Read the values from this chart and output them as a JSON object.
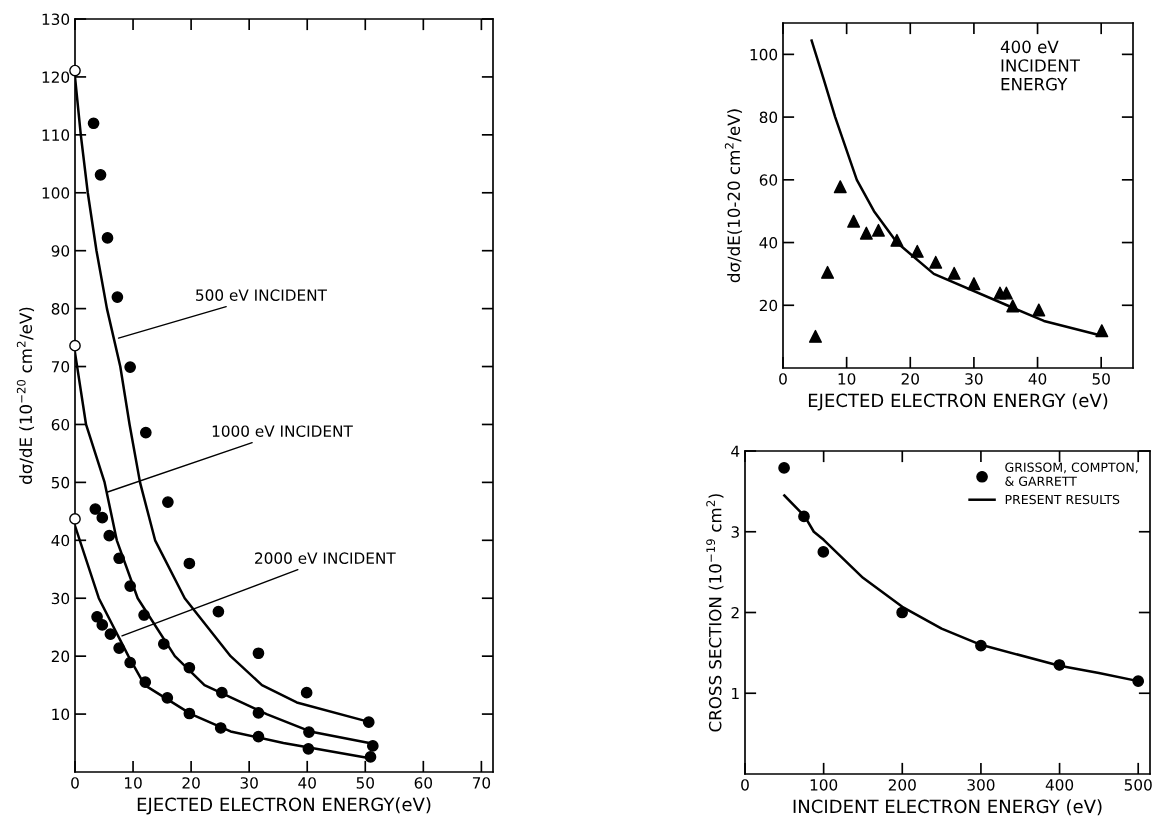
{
  "chart_data": [
    {
      "type": "scatter",
      "xlabel": "EJECTED ELECTRON ENERGY(eV)",
      "ylabel": "dσ/dE (10$^{−20}$ cm$^{2}$/eV)",
      "xlim": [
        0,
        72
      ],
      "xticks": [
        0,
        10,
        20,
        30,
        40,
        50,
        60,
        70
      ],
      "ylim": [
        0,
        130
      ],
      "yticks": [
        10,
        20,
        30,
        40,
        50,
        60,
        70,
        80,
        90,
        100,
        110,
        120,
        130
      ],
      "grid": false,
      "legend": false,
      "annotations": [
        {
          "text": "500 eV INCIDENT",
          "x": 7.5,
          "y": 74.9
        },
        {
          "text": "1000 eV INCIDENT",
          "x": 5.5,
          "y": 48.3
        },
        {
          "text": "2000 eV INCIDENT",
          "x": 8.1,
          "y": 23.5
        }
      ],
      "series": [
        {
          "marker": "circle",
          "color": "#000000",
          "x": [
            3.2,
            4.4,
            5.6,
            7.3,
            9.5,
            12.2,
            16.0,
            19.7,
            24.7,
            31.6,
            39.9,
            50.6
          ],
          "values": [
            112.0,
            103.1,
            92.2,
            82.0,
            69.9,
            58.6,
            46.6,
            36.0,
            27.7,
            20.5,
            13.7,
            8.6
          ]
        },
        {
          "marker": "circle",
          "color": "#000000",
          "x": [
            3.5,
            4.7,
            5.9,
            7.6,
            9.5,
            11.9,
            15.3,
            19.7,
            25.3,
            31.6,
            40.3,
            51.3
          ],
          "values": [
            45.4,
            43.9,
            40.8,
            36.9,
            32.1,
            27.1,
            22.1,
            18.0,
            13.7,
            10.2,
            6.9,
            4.5
          ]
        },
        {
          "marker": "circle",
          "color": "#000000",
          "x": [
            3.8,
            4.7,
            6.1,
            7.6,
            9.5,
            12.1,
            15.9,
            19.7,
            25.1,
            31.6,
            40.2,
            50.9
          ],
          "values": [
            26.8,
            25.4,
            23.8,
            21.4,
            18.9,
            15.5,
            12.8,
            10.1,
            7.6,
            6.1,
            4.0,
            2.6
          ]
        },
        {
          "marker": "circle",
          "color": "#ffffff",
          "x": [
            0,
            0,
            0
          ],
          "values": [
            121.1,
            73.6,
            43.7
          ]
        },
        {
          "type": "line",
          "marker": "none",
          "color": "#000000",
          "x": [
            0,
            1,
            2.2,
            3.7,
            5.5,
            7.8,
            9.4,
            11.2,
            13.8,
            18.9,
            26.8,
            32.2,
            38.2,
            50.1
          ],
          "values": [
            120,
            110,
            100,
            90,
            80,
            70,
            60,
            50,
            40,
            30,
            20,
            15,
            12,
            8.8
          ]
        },
        {
          "type": "line",
          "marker": "none",
          "color": "#000000",
          "x": [
            0,
            1.9,
            5.1,
            7.2,
            10.8,
            17.2,
            22.3,
            33,
            40.5,
            50.7
          ],
          "values": [
            72.4,
            60,
            50,
            40,
            30,
            20,
            15,
            10,
            7,
            5.0
          ]
        },
        {
          "type": "line",
          "marker": "none",
          "color": "#000000",
          "x": [
            0,
            4.1,
            9.2,
            12,
            20,
            26.8,
            35.9,
            50.1
          ],
          "values": [
            42.5,
            30,
            20,
            15,
            10,
            7,
            5,
            2.5
          ]
        }
      ]
    },
    {
      "type": "scatter",
      "xlabel": "EJECTED ELECTRON ENERGY (eV)",
      "ylabel": "dσ/dE(10-20 cm$^{2}$/eV)",
      "xlim": [
        0,
        55
      ],
      "xticks": [
        0,
        10,
        20,
        30,
        40,
        50
      ],
      "ylim": [
        0,
        110
      ],
      "yticks": [
        20,
        40,
        60,
        80,
        100
      ],
      "grid": false,
      "legend": false,
      "annotations": [
        "400 eV\nINCIDENT\nENERGY"
      ],
      "series": [
        {
          "marker": "triangle",
          "color": "#000000",
          "x": [
            5.1,
            7.0,
            9.0,
            11.1,
            13.1,
            15.0,
            17.9,
            21.1,
            24.0,
            26.9,
            30.0,
            34.1,
            35.1,
            36.1,
            40.2,
            50.1
          ],
          "values": [
            10.1,
            30.5,
            57.8,
            46.8,
            43.0,
            43.9,
            40.7,
            37.2,
            33.7,
            30.2,
            26.9,
            23.9,
            23.9,
            19.8,
            18.5,
            11.9
          ]
        },
        {
          "type": "line",
          "marker": "none",
          "color": "#000000",
          "x": [
            4.5,
            6.4,
            8.2,
            11.6,
            14.3,
            17.9,
            23.7,
            35.2,
            41,
            49.3
          ],
          "values": [
            104.4,
            92,
            80,
            60,
            50,
            40,
            30,
            20,
            15,
            10.7
          ]
        }
      ]
    },
    {
      "type": "scatter",
      "xlabel": "INCIDENT ELECTRON ENERGY (eV)",
      "ylabel": "CROSS SECTION (10$^{−19}$ cm$^{2}$)",
      "xlim": [
        0,
        515
      ],
      "xticks": [
        0,
        100,
        200,
        300,
        400,
        500
      ],
      "ylim": [
        0,
        4
      ],
      "yticks": [
        1,
        2,
        3,
        4
      ],
      "grid": false,
      "legend": "top right",
      "series": [
        {
          "name": "GRISSOM, COMPTON,\n& GARRETT",
          "marker": "circle",
          "color": "#000000",
          "x": [
            49.7,
            75.0,
            99.6,
            199.8,
            300,
            399.8,
            500
          ],
          "values": [
            3.79,
            3.19,
            2.75,
            2.0,
            1.59,
            1.35,
            1.15
          ]
        },
        {
          "type": "line",
          "name": "PRESENT RESULTS",
          "marker": "none",
          "color": "#000000",
          "x": [
            50,
            76,
            87.5,
            100,
            150,
            200,
            250,
            300,
            400,
            450,
            500
          ],
          "values": [
            3.45,
            3.19,
            3.0,
            2.9,
            2.43,
            2.07,
            1.8,
            1.6,
            1.34,
            1.25,
            1.15
          ]
        }
      ]
    }
  ]
}
